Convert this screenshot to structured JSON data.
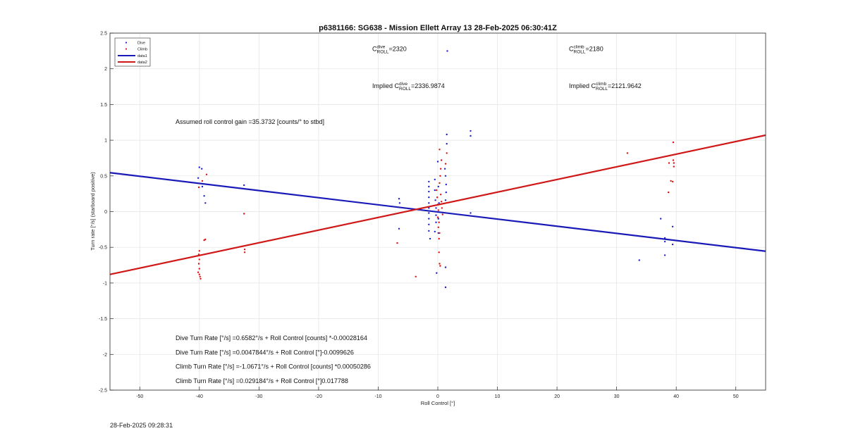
{
  "figure": {
    "timestamp": "28-Feb-2025 09:28:31"
  },
  "chart_data": {
    "type": "scatter",
    "title": "p6381166: SG638 - Mission Ellett Array 13 28-Feb-2025 06:30:41Z",
    "xlabel": "Roll Control [°]",
    "ylabel": "Turn rate [°/s] (starboard positive)",
    "xlim": [
      -55,
      55
    ],
    "ylim": [
      -2.5,
      2.5
    ],
    "xticks": [
      -50,
      -40,
      -30,
      -20,
      -10,
      0,
      10,
      20,
      30,
      40,
      50
    ],
    "yticks": [
      -2.5,
      -2,
      -1.5,
      -1,
      -0.5,
      0,
      0.5,
      1,
      1.5,
      2,
      2.5
    ],
    "xtick_labels": [
      "-50",
      "-40",
      "-30",
      "-20",
      "-10",
      "0",
      "10",
      "20",
      "30",
      "40",
      "50"
    ],
    "ytick_labels": [
      "-2.5",
      "-2",
      "-1.5",
      "-1",
      "-0.5",
      "0",
      "0.5",
      "1",
      "1.5",
      "2",
      "2.5"
    ],
    "grid": true,
    "legend_position": "top-left",
    "legend": [
      {
        "label": "Dive",
        "kind": "marker",
        "color": "#1f1fd0"
      },
      {
        "label": "Climb",
        "kind": "marker",
        "color": "#e01010"
      },
      {
        "label": "data1",
        "kind": "line",
        "color": "#1a1ab8"
      },
      {
        "label": "data2",
        "kind": "line",
        "color": "#d01818"
      }
    ],
    "series": [
      {
        "name": "Dive",
        "color": "#1f1fd0",
        "points": [
          [
            -40,
            0.62
          ],
          [
            -39.6,
            0.6
          ],
          [
            -40.2,
            0.47
          ],
          [
            -39.5,
            0.35
          ],
          [
            -39.2,
            0.22
          ],
          [
            -39,
            0.12
          ],
          [
            -32.5,
            0.37
          ],
          [
            -6.5,
            0.18
          ],
          [
            -6.4,
            0.12
          ],
          [
            -6.5,
            -0.24
          ],
          [
            -1.5,
            0.42
          ],
          [
            -1.5,
            0.35
          ],
          [
            -1.5,
            0.28
          ],
          [
            -1.5,
            0.2
          ],
          [
            -1.5,
            0.12
          ],
          [
            -1.5,
            0.05
          ],
          [
            -1.5,
            -0.02
          ],
          [
            -1.5,
            -0.1
          ],
          [
            -1.5,
            -0.18
          ],
          [
            -1.5,
            -0.27
          ],
          [
            -1.3,
            -0.38
          ],
          [
            -0.5,
            0.45
          ],
          [
            -0.5,
            0.3
          ],
          [
            -0.4,
            0.16
          ],
          [
            -0.3,
            0.05
          ],
          [
            -0.3,
            -0.05
          ],
          [
            -0.3,
            -0.15
          ],
          [
            -0.5,
            -0.28
          ],
          [
            0,
            0.7
          ],
          [
            0.1,
            0.35
          ],
          [
            0.2,
            0.12
          ],
          [
            0.1,
            -0.1
          ],
          [
            0.1,
            -0.3
          ],
          [
            -0.2,
            -0.86
          ],
          [
            1.2,
            0.6
          ],
          [
            1.3,
            0.5
          ],
          [
            1.4,
            0.38
          ],
          [
            1.4,
            0.27
          ],
          [
            1.3,
            0.16
          ],
          [
            1.5,
            0.95
          ],
          [
            1.5,
            1.08
          ],
          [
            1.6,
            2.25
          ],
          [
            1.3,
            -0.78
          ],
          [
            1.3,
            -1.06
          ],
          [
            5.5,
            1.13
          ],
          [
            5.5,
            1.06
          ],
          [
            5.5,
            -0.02
          ],
          [
            33.8,
            -0.68
          ],
          [
            37.4,
            -0.1
          ],
          [
            38.1,
            -0.37
          ],
          [
            38.1,
            -0.42
          ],
          [
            38.1,
            -0.61
          ],
          [
            39.4,
            -0.21
          ],
          [
            39.4,
            -0.46
          ]
        ]
      },
      {
        "name": "Climb",
        "color": "#e01010",
        "points": [
          [
            -40.1,
            0.34
          ],
          [
            -39.5,
            0.43
          ],
          [
            -38.8,
            0.52
          ],
          [
            -40,
            -0.55
          ],
          [
            -40.1,
            -0.6
          ],
          [
            -40,
            -0.67
          ],
          [
            -40.1,
            -0.73
          ],
          [
            -40,
            -0.8
          ],
          [
            -40.2,
            -0.85
          ],
          [
            -40,
            -0.88
          ],
          [
            -39.9,
            -0.91
          ],
          [
            -39.8,
            -0.94
          ],
          [
            -39.2,
            -0.4
          ],
          [
            -39,
            -0.39
          ],
          [
            -32.5,
            -0.03
          ],
          [
            -32.4,
            -0.53
          ],
          [
            -32.4,
            -0.57
          ],
          [
            -6.8,
            -0.44
          ],
          [
            -3.7,
            -0.91
          ],
          [
            -0.2,
            0.3
          ],
          [
            -0.1,
            0.2
          ],
          [
            0,
            0.1
          ],
          [
            0.1,
            0.02
          ],
          [
            0,
            -0.08
          ],
          [
            0.2,
            -0.15
          ],
          [
            0.1,
            -0.22
          ],
          [
            0.3,
            -0.3
          ],
          [
            0.2,
            -0.38
          ],
          [
            0.4,
            0.5
          ],
          [
            0.5,
            0.6
          ],
          [
            0.6,
            0.72
          ],
          [
            0.3,
            0.4
          ],
          [
            0.5,
            0.24
          ],
          [
            0.6,
            0.14
          ],
          [
            0.7,
            0.05
          ],
          [
            0.8,
            -0.04
          ],
          [
            0.3,
            0.87
          ],
          [
            0.2,
            -0.57
          ],
          [
            0.3,
            -0.73
          ],
          [
            0.4,
            -0.76
          ],
          [
            1.3,
            0.67
          ],
          [
            1.5,
            0.82
          ],
          [
            31.8,
            0.82
          ],
          [
            38.8,
            0.68
          ],
          [
            39.1,
            0.43
          ],
          [
            38.7,
            0.27
          ],
          [
            39.5,
            0.97
          ],
          [
            39.5,
            0.72
          ],
          [
            39.6,
            0.68
          ],
          [
            39.6,
            0.63
          ],
          [
            39.4,
            0.42
          ]
        ]
      }
    ],
    "fit_lines": [
      {
        "name": "data1",
        "color": "#1a1ab8",
        "from": [
          -55,
          0.545
        ],
        "to": [
          55,
          -0.555
        ]
      },
      {
        "name": "data2",
        "color": "#d01818",
        "from": [
          -55,
          -0.88
        ],
        "to": [
          55,
          1.07
        ]
      }
    ],
    "annotations": {
      "c_dive": {
        "base": "C",
        "sup": "dive",
        "sub": "ROLL",
        "value": "=2320",
        "x": -11,
        "y": 2.25
      },
      "c_climb": {
        "base": "C",
        "sup": "climb",
        "sub": "ROLL",
        "value": "=2180",
        "x": 22,
        "y": 2.25
      },
      "implied_dive": {
        "prefix": "Implied ",
        "base": "C",
        "sup": "dive",
        "sub": "ROLL",
        "value": "=2336.9874",
        "x": -11,
        "y": 1.73
      },
      "implied_climb": {
        "prefix": "Implied ",
        "base": "C",
        "sup": "climb",
        "sub": "ROLL",
        "value": "=2121.9642",
        "x": 22,
        "y": 1.73
      },
      "gain": {
        "text": "Assumed roll control gain =35.3732 [counts/° to stbd]",
        "x": -44,
        "y": 1.23
      },
      "eq1": {
        "text": "Dive Turn Rate [°/s] =0.6582°/s + Roll Control [counts] *-0.00028164",
        "x": -44,
        "y": -1.8
      },
      "eq2": {
        "text": "Dive Turn Rate [°/s] =0.0047844°/s + Roll Control [°]-0.0099626",
        "x": -44,
        "y": -2.0
      },
      "eq3": {
        "text": "Climb Turn Rate [°/s] =-1.0671°/s + Roll Control [counts] *0.00050286",
        "x": -44,
        "y": -2.2
      },
      "eq4": {
        "text": "Climb Turn Rate [°/s] =0.029184°/s + Roll Control [°]0.017788",
        "x": -44,
        "y": -2.4
      }
    }
  }
}
